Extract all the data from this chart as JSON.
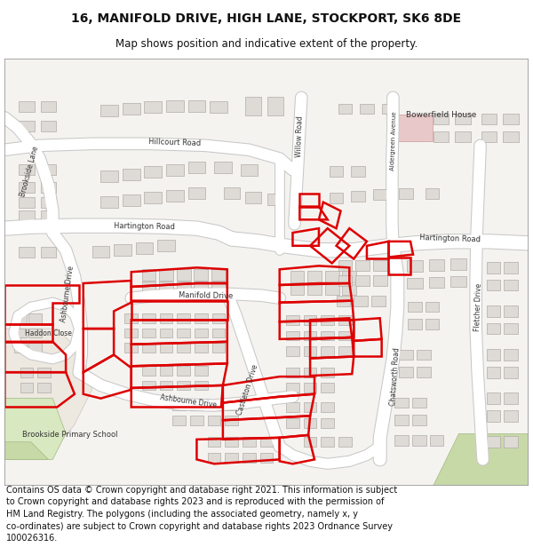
{
  "title": "16, MANIFOLD DRIVE, HIGH LANE, STOCKPORT, SK6 8DE",
  "subtitle": "Map shows position and indicative extent of the property.",
  "footer": "Contains OS data © Crown copyright and database right 2021. This information is subject\nto Crown copyright and database rights 2023 and is reproduced with the permission of\nHM Land Registry. The polygons (including the associated geometry, namely x, y\nco-ordinates) are subject to Crown copyright and database rights 2023 Ordnance Survey\n100026316.",
  "bg_color": "#f5f3f0",
  "road_fill": "#ffffff",
  "road_edge": "#c8c8c8",
  "building_fill": "#dedad5",
  "building_edge": "#b0aca8",
  "green_fill": "#c8d9a8",
  "green_edge": "#a0b880",
  "park_fill": "#d8e8c0",
  "pink_fill": "#e8c8c8",
  "red_outline": "#dd0000",
  "red_fill": "none",
  "title_fs": 10,
  "subtitle_fs": 8.5,
  "footer_fs": 7,
  "label_fs": 6,
  "text_color": "#111111"
}
